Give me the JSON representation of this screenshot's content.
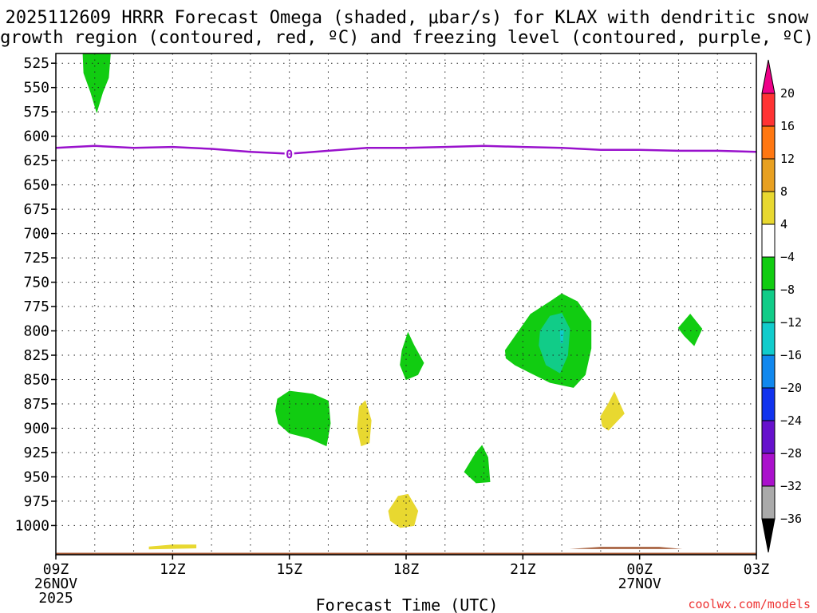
{
  "chart_data": {
    "type": "contour",
    "title_lines": [
      "2025112609 HRRR Forecast Omega (shaded, μbar/s) for KLAX with dendritic snow",
      "growth region (contoured, red, ºC) and freezing level (contoured, purple, ºC)"
    ],
    "xlabel": "Forecast Time (UTC)",
    "credit": "coolwx.com/models",
    "x_range_hours": [
      0,
      18
    ],
    "y_range_hPa": [
      515,
      1030
    ],
    "x_ticks": [
      {
        "h": 0,
        "label": "09Z",
        "sub1": "26NOV",
        "sub2": "2025"
      },
      {
        "h": 3,
        "label": "12Z",
        "sub1": "",
        "sub2": ""
      },
      {
        "h": 6,
        "label": "15Z",
        "sub1": "",
        "sub2": ""
      },
      {
        "h": 9,
        "label": "18Z",
        "sub1": "",
        "sub2": ""
      },
      {
        "h": 12,
        "label": "21Z",
        "sub1": "",
        "sub2": ""
      },
      {
        "h": 15,
        "label": "00Z",
        "sub1": "27NOV",
        "sub2": ""
      },
      {
        "h": 18,
        "label": "03Z",
        "sub1": "",
        "sub2": ""
      }
    ],
    "y_ticks": [
      525,
      550,
      575,
      600,
      625,
      650,
      675,
      700,
      725,
      750,
      775,
      800,
      825,
      850,
      875,
      900,
      925,
      950,
      975,
      1000
    ],
    "colorbar": {
      "top_arrow_color": "#ee0088",
      "bottom_arrow_color": "#000000",
      "bins": [
        {
          "color": "#ff3333"
        },
        {
          "color": "#ff7711"
        },
        {
          "color": "#e8a020"
        },
        {
          "color": "#e8d830"
        },
        {
          "color": "#ffffff"
        },
        {
          "color": "#11cc11"
        },
        {
          "color": "#11cc88"
        },
        {
          "color": "#11cccc"
        },
        {
          "color": "#1188ee"
        },
        {
          "color": "#1133ee"
        },
        {
          "color": "#6611cc"
        },
        {
          "color": "#aa11cc"
        },
        {
          "color": "#aaaaaa"
        }
      ],
      "labels": [
        "20",
        "16",
        "12",
        "8",
        "4",
        "−4",
        "−8",
        "−12",
        "−16",
        "−20",
        "−24",
        "−28",
        "−32",
        "−36"
      ]
    },
    "freezing_level": {
      "color": "#9911cc",
      "label": "0",
      "label_at_h": 6,
      "points": [
        [
          0,
          612
        ],
        [
          1,
          610
        ],
        [
          2,
          612
        ],
        [
          3,
          611
        ],
        [
          4,
          613
        ],
        [
          5,
          616
        ],
        [
          6,
          618
        ],
        [
          7,
          615
        ],
        [
          8,
          612
        ],
        [
          9,
          612
        ],
        [
          10,
          611
        ],
        [
          11,
          610
        ],
        [
          12,
          611
        ],
        [
          13,
          612
        ],
        [
          14,
          614
        ],
        [
          15,
          614
        ],
        [
          16,
          615
        ],
        [
          17,
          615
        ],
        [
          18,
          616
        ]
      ]
    },
    "omega_regions": [
      {
        "value": -6,
        "color": "#11cc11",
        "points": [
          [
            0.7,
            515
          ],
          [
            1.4,
            515
          ],
          [
            1.35,
            540
          ],
          [
            1.2,
            555
          ],
          [
            1.05,
            575
          ],
          [
            0.9,
            555
          ],
          [
            0.72,
            535
          ]
        ]
      },
      {
        "value": -6,
        "color": "#11cc11",
        "points": [
          [
            5.7,
            870
          ],
          [
            6.0,
            862
          ],
          [
            6.6,
            865
          ],
          [
            7.0,
            872
          ],
          [
            7.05,
            895
          ],
          [
            6.95,
            918
          ],
          [
            6.5,
            910
          ],
          [
            6.0,
            905
          ],
          [
            5.72,
            895
          ],
          [
            5.65,
            882
          ]
        ]
      },
      {
        "value": 6,
        "color": "#e8d830",
        "points": [
          [
            7.8,
            878
          ],
          [
            7.95,
            872
          ],
          [
            8.1,
            892
          ],
          [
            8.05,
            915
          ],
          [
            7.85,
            918
          ],
          [
            7.75,
            900
          ]
        ]
      },
      {
        "value": -6,
        "color": "#11cc11",
        "points": [
          [
            8.9,
            820
          ],
          [
            9.05,
            802
          ],
          [
            9.2,
            815
          ],
          [
            9.45,
            833
          ],
          [
            9.3,
            845
          ],
          [
            9.0,
            850
          ],
          [
            8.85,
            835
          ]
        ]
      },
      {
        "value": 6,
        "color": "#e8d830",
        "points": [
          [
            8.55,
            985
          ],
          [
            8.8,
            970
          ],
          [
            9.05,
            968
          ],
          [
            9.3,
            985
          ],
          [
            9.2,
            1000
          ],
          [
            8.85,
            1002
          ],
          [
            8.6,
            995
          ]
        ]
      },
      {
        "value": -6,
        "color": "#11cc11",
        "points": [
          [
            10.5,
            945
          ],
          [
            10.8,
            925
          ],
          [
            10.95,
            918
          ],
          [
            11.1,
            930
          ],
          [
            11.15,
            955
          ],
          [
            10.8,
            956
          ]
        ]
      },
      {
        "value": -6,
        "color": "#11cc11",
        "points": [
          [
            11.55,
            820
          ],
          [
            11.9,
            800
          ],
          [
            12.2,
            783
          ],
          [
            12.7,
            770
          ],
          [
            13.0,
            762
          ],
          [
            13.4,
            770
          ],
          [
            13.75,
            790
          ],
          [
            13.75,
            818
          ],
          [
            13.6,
            845
          ],
          [
            13.3,
            858
          ],
          [
            12.7,
            853
          ],
          [
            12.2,
            843
          ],
          [
            11.8,
            835
          ],
          [
            11.57,
            828
          ]
        ]
      },
      {
        "value": -10,
        "color": "#11cc88",
        "points": [
          [
            12.45,
            800
          ],
          [
            12.7,
            785
          ],
          [
            13.0,
            782
          ],
          [
            13.2,
            798
          ],
          [
            13.15,
            825
          ],
          [
            12.95,
            843
          ],
          [
            12.6,
            835
          ],
          [
            12.42,
            815
          ]
        ]
      },
      {
        "value": -14,
        "color": "#11cccc",
        "points": [
          [
            12.96,
            800
          ],
          [
            13.04,
            800
          ],
          [
            13.02,
            812
          ],
          [
            12.98,
            812
          ]
        ]
      },
      {
        "value": 6,
        "color": "#e8d830",
        "points": [
          [
            14.0,
            888
          ],
          [
            14.2,
            875
          ],
          [
            14.35,
            863
          ],
          [
            14.6,
            885
          ],
          [
            14.2,
            902
          ],
          [
            14.05,
            898
          ]
        ]
      },
      {
        "value": -6,
        "color": "#11cc11",
        "points": [
          [
            16.0,
            797
          ],
          [
            16.3,
            783
          ],
          [
            16.6,
            798
          ],
          [
            16.4,
            815
          ],
          [
            16.15,
            805
          ]
        ]
      },
      {
        "value": 6,
        "color": "#e8d830",
        "points": [
          [
            2.4,
            1022
          ],
          [
            3.0,
            1020
          ],
          [
            3.6,
            1020
          ],
          [
            3.6,
            1023
          ],
          [
            2.4,
            1024
          ]
        ]
      }
    ],
    "terrain": {
      "color": "#a05530",
      "top_hPa": 1028,
      "bumps": [
        [
          13.2,
          1024
        ],
        [
          14.0,
          1022
        ],
        [
          15.5,
          1022
        ],
        [
          16.1,
          1024
        ]
      ]
    }
  }
}
